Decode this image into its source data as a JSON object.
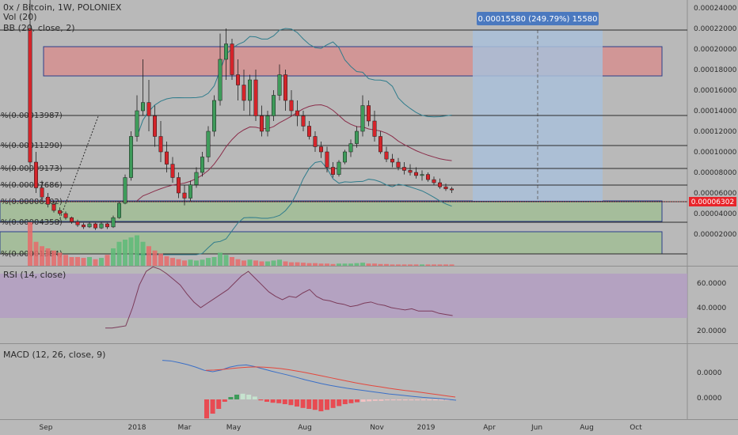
{
  "header": {
    "symbol_line": "0x / Bitcoin, 1W, POLONIEX",
    "vol_label": "Vol (20)",
    "bb_label": "BB (20, close, 2)"
  },
  "colors": {
    "background": "#b9b9b9",
    "up": "#3e9b5a",
    "down": "#d4242a",
    "fib_zone_red": "#d98b8b",
    "fib_zone_green": "#9cbf8f",
    "measure_box": "#a9bfd9",
    "price_tag": "#e8242a",
    "rsi_band": "#b39bc4",
    "macd_line": "#3a6fc7",
    "signal_line": "#e4473c",
    "bb_line": "#2f7c8c",
    "bb_mid": "#8a2d4a"
  },
  "x_axis": {
    "labels": [
      "Sep",
      "2018",
      "Mar",
      "May",
      "Aug",
      "Nov",
      "2019",
      "Apr",
      "Jun",
      "Aug",
      "Oct"
    ]
  },
  "price_axis": {
    "ticks": [
      "0.00024000",
      "0.00022000",
      "0.00020000",
      "0.00018000",
      "0.00016000",
      "0.00014000",
      "0.00012000",
      "0.00010000",
      "0.00008000",
      "0.00006000",
      "0.00004000",
      "0.00002000"
    ],
    "current_price": "0.00006302"
  },
  "rsi": {
    "label": "RSI (14, close)",
    "ticks": [
      "60.0000",
      "40.0000",
      "20.0000"
    ]
  },
  "macd": {
    "label": "MACD (12, 26, close, 9)",
    "ticks": [
      "0.0000",
      "0.0000"
    ]
  },
  "fib_levels": [
    {
      "label": "%(0.00013987)",
      "price": 0.00013987
    },
    {
      "label": "%(0.00011290)",
      "price": 0.0001129
    },
    {
      "label": "%(0.00009173)",
      "price": 9.173e-05
    },
    {
      "label": "%(0.00007686)",
      "price": 7.686e-05
    },
    {
      "label": "%(0.00006302)",
      "price": 6.302e-05
    },
    {
      "label": "%(0.00004358)",
      "price": 4.358e-05
    },
    {
      "label": "%(0.00001384)",
      "price": 1.384e-05
    }
  ],
  "measure": {
    "label": "0.00015580 (249.79%) 15580"
  },
  "chart_data": {
    "type": "candlestick",
    "title": "0x / Bitcoin, 1W, POLONIEX",
    "ylim": [
      0,
      0.00025
    ],
    "candles": [
      [
        0.00022,
        0.00026,
        8e-05,
        9e-05
      ],
      [
        9e-05,
        0.0001,
        6e-05,
        6.5e-05
      ],
      [
        6.5e-05,
        7.2e-05,
        5.2e-05,
        5.6e-05
      ],
      [
        5.6e-05,
        6e-05,
        4.6e-05,
        4.9e-05
      ],
      [
        4.9e-05,
        5.2e-05,
        4.1e-05,
        4.3e-05
      ],
      [
        4.3e-05,
        4.6e-05,
        3.8e-05,
        4e-05
      ],
      [
        4e-05,
        4.2e-05,
        3.4e-05,
        3.6e-05
      ],
      [
        3.6e-05,
        3.7e-05,
        3e-05,
        3.2e-05
      ],
      [
        3.2e-05,
        3.4e-05,
        2.7e-05,
        2.9e-05
      ],
      [
        2.9e-05,
        3.1e-05,
        2.5e-05,
        2.7e-05
      ],
      [
        2.7e-05,
        3.2e-05,
        2.6e-05,
        3e-05
      ],
      [
        3e-05,
        3.1e-05,
        2.4e-05,
        2.6e-05
      ],
      [
        2.6e-05,
        3.2e-05,
        2.5e-05,
        3e-05
      ],
      [
        3e-05,
        3.1e-05,
        2.5e-05,
        2.7e-05
      ],
      [
        2.7e-05,
        3.8e-05,
        2.6e-05,
        3.6e-05
      ],
      [
        3.6e-05,
        5.2e-05,
        3.5e-05,
        5e-05
      ],
      [
        5e-05,
        7.8e-05,
        4.9e-05,
        7.5e-05
      ],
      [
        7.5e-05,
        0.00012,
        7.2e-05,
        0.000115
      ],
      [
        0.000115,
        0.000155,
        0.00011,
        0.00014
      ],
      [
        0.00014,
        0.00019,
        0.000135,
        0.000148
      ],
      [
        0.000148,
        0.00017,
        0.00012,
        0.000135
      ],
      [
        0.000135,
        0.000145,
        0.000105,
        0.000115
      ],
      [
        0.000115,
        0.00013,
        9e-05,
        0.0001
      ],
      [
        0.0001,
        0.00011,
        8e-05,
        8.8e-05
      ],
      [
        8.8e-05,
        9.5e-05,
        7e-05,
        7.5e-05
      ],
      [
        7.5e-05,
        8e-05,
        5.5e-05,
        6e-05
      ],
      [
        6e-05,
        6.8e-05,
        4.8e-05,
        5.5e-05
      ],
      [
        5.5e-05,
        7.2e-05,
        5.2e-05,
        6.8e-05
      ],
      [
        6.8e-05,
        8.5e-05,
        6.5e-05,
        8e-05
      ],
      [
        8e-05,
        0.0001,
        7.6e-05,
        9.5e-05
      ],
      [
        9.5e-05,
        0.000125,
        9e-05,
        0.00012
      ],
      [
        0.00012,
        0.000155,
        0.000115,
        0.00015
      ],
      [
        0.00015,
        0.000215,
        0.000145,
        0.00019
      ],
      [
        0.00019,
        0.00022,
        0.00017,
        0.000205
      ],
      [
        0.000205,
        0.00021,
        0.00017,
        0.000175
      ],
      [
        0.000175,
        0.00019,
        0.00015,
        0.000165
      ],
      [
        0.000165,
        0.00018,
        0.00014,
        0.00015
      ],
      [
        0.00015,
        0.000175,
        0.000135,
        0.00017
      ],
      [
        0.00017,
        0.00018,
        0.00013,
        0.000135
      ],
      [
        0.000135,
        0.000145,
        0.000115,
        0.00012
      ],
      [
        0.00012,
        0.00014,
        0.000115,
        0.000135
      ],
      [
        0.000135,
        0.00016,
        0.00013,
        0.000155
      ],
      [
        0.000155,
        0.000185,
        0.00015,
        0.000175
      ],
      [
        0.000175,
        0.00018,
        0.00014,
        0.00015
      ],
      [
        0.00015,
        0.00016,
        0.000135,
        0.00014
      ],
      [
        0.00014,
        0.00015,
        0.000125,
        0.000135
      ],
      [
        0.000135,
        0.00014,
        0.00012,
        0.000125
      ],
      [
        0.000125,
        0.00013,
        0.000112,
        0.000115
      ],
      [
        0.000115,
        0.00012,
        0.0001,
        0.000105
      ],
      [
        0.000105,
        0.00011,
        9.4e-05,
        0.0001
      ],
      [
        0.0001,
        0.000105,
        8e-05,
        8.5e-05
      ],
      [
        8.5e-05,
        9e-05,
        7.5e-05,
        7.8e-05
      ],
      [
        7.8e-05,
        9.2e-05,
        7.6e-05,
        9e-05
      ],
      [
        9e-05,
        0.000102,
        8.8e-05,
        0.0001
      ],
      [
        0.0001,
        0.000112,
        9.5e-05,
        0.000108
      ],
      [
        0.000108,
        0.000125,
        0.000104,
        0.00012
      ],
      [
        0.00012,
        0.000155,
        0.000115,
        0.000145
      ],
      [
        0.000145,
        0.00015,
        0.000125,
        0.00013
      ],
      [
        0.00013,
        0.00014,
        0.00011,
        0.000115
      ],
      [
        0.000115,
        0.00012,
        9.8e-05,
        0.0001
      ],
      [
        0.0001,
        0.000105,
        9e-05,
        9.3e-05
      ],
      [
        9.3e-05,
        9.8e-05,
        8.5e-05,
        9e-05
      ],
      [
        9e-05,
        9.4e-05,
        8.2e-05,
        8.5e-05
      ],
      [
        8.5e-05,
        9e-05,
        7.8e-05,
        8.2e-05
      ],
      [
        8.2e-05,
        8.8e-05,
        7.7e-05,
        8e-05
      ],
      [
        8e-05,
        8.5e-05,
        7.4e-05,
        7.7e-05
      ],
      [
        7.7e-05,
        8.2e-05,
        7.2e-05,
        7.8e-05
      ],
      [
        7.8e-05,
        8e-05,
        7.1e-05,
        7.3e-05
      ],
      [
        7.3e-05,
        7.6e-05,
        6.8e-05,
        7e-05
      ],
      [
        7e-05,
        7.4e-05,
        6.4e-05,
        6.6e-05
      ],
      [
        6.6e-05,
        6.9e-05,
        6.2e-05,
        6.4e-05
      ],
      [
        6.4e-05,
        6.6e-05,
        6e-05,
        6.3e-05
      ]
    ],
    "volume": [
      1.0,
      0.55,
      0.45,
      0.4,
      0.35,
      0.3,
      0.25,
      0.2,
      0.2,
      0.18,
      0.2,
      0.15,
      0.18,
      0.25,
      0.4,
      0.55,
      0.6,
      0.65,
      0.7,
      0.55,
      0.45,
      0.35,
      0.28,
      0.22,
      0.18,
      0.15,
      0.12,
      0.14,
      0.12,
      0.14,
      0.18,
      0.2,
      0.3,
      0.25,
      0.2,
      0.15,
      0.12,
      0.14,
      0.12,
      0.1,
      0.1,
      0.12,
      0.14,
      0.1,
      0.08,
      0.08,
      0.07,
      0.06,
      0.06,
      0.05,
      0.05,
      0.04,
      0.05,
      0.05,
      0.05,
      0.06,
      0.07,
      0.05,
      0.05,
      0.04,
      0.04,
      0.03,
      0.03,
      0.03,
      0.03,
      0.03,
      0.03,
      0.03,
      0.03,
      0.03,
      0.03,
      0.03
    ],
    "rsi_values": [
      22,
      22,
      23,
      24,
      40,
      60,
      72,
      76,
      74,
      70,
      65,
      60,
      52,
      45,
      40,
      44,
      48,
      52,
      56,
      62,
      68,
      72,
      66,
      60,
      54,
      50,
      47,
      50,
      49,
      53,
      56,
      50,
      47,
      46,
      44,
      43,
      41,
      42,
      44,
      45,
      43,
      42,
      40,
      39,
      38,
      39,
      37,
      37,
      37,
      35,
      34,
      33
    ],
    "macd_values": [
      0.9,
      0.88,
      0.82,
      0.75,
      0.66,
      0.55,
      0.5,
      0.56,
      0.66,
      0.72,
      0.74,
      0.68,
      0.6,
      0.52,
      0.45,
      0.38,
      0.3,
      0.22,
      0.15,
      0.08,
      0.02,
      -0.03,
      -0.08,
      -0.12,
      -0.16,
      -0.2,
      -0.24,
      -0.28,
      -0.31,
      -0.34,
      -0.37,
      -0.4,
      -0.42,
      -0.44,
      -0.47,
      -0.5
    ],
    "signal_values": [
      0.55,
      0.56,
      0.58,
      0.61,
      0.64,
      0.66,
      0.67,
      0.66,
      0.64,
      0.61,
      0.57,
      0.52,
      0.47,
      0.41,
      0.35,
      0.29,
      0.23,
      0.17,
      0.11,
      0.06,
      0.01,
      -0.03,
      -0.08,
      -0.12,
      -0.16,
      -0.19,
      -0.23,
      -0.27,
      -0.31,
      -0.35,
      -0.39
    ],
    "macd_hist": [
      -0.4,
      -0.3,
      -0.2,
      -0.05,
      0.05,
      0.1,
      0.12,
      0.1,
      0.06,
      -0.02,
      -0.05,
      -0.07,
      -0.08,
      -0.1,
      -0.12,
      -0.15,
      -0.18,
      -0.2,
      -0.22,
      -0.25,
      -0.22,
      -0.18,
      -0.14,
      -0.1,
      -0.08,
      -0.06,
      -0.05,
      -0.04,
      -0.03,
      -0.03,
      -0.02,
      -0.02,
      -0.02,
      -0.02,
      -0.02,
      -0.02,
      -0.02,
      -0.02,
      -0.02,
      -0.02,
      -0.02
    ]
  }
}
